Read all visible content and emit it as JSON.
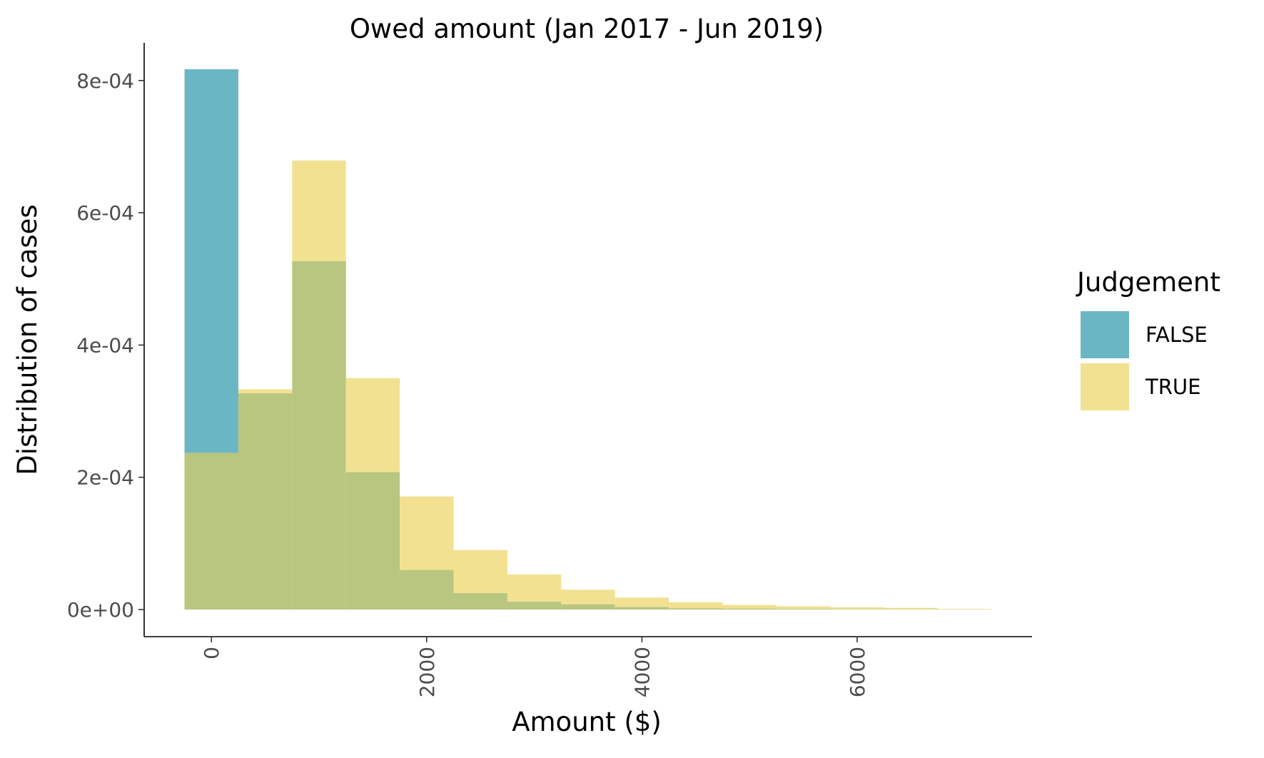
{
  "chart_data": {
    "type": "histogram",
    "title": "Owed amount (Jan 2017 - Jun 2019)",
    "xlabel": "Amount ($)",
    "ylabel": "Distribution of cases",
    "xlim": [
      -625,
      7625
    ],
    "ylim": [
      -4.1e-05,
      0.000857
    ],
    "x_ticks": [
      0,
      2000,
      4000,
      6000
    ],
    "x_tick_labels": [
      "0",
      "2000",
      "4000",
      "6000"
    ],
    "x_tick_label_rotation": -90,
    "y_ticks": [
      0,
      0.0002,
      0.0004,
      0.0006,
      0.0008
    ],
    "y_tick_labels": [
      "0e+00",
      "2e-04",
      "4e-04",
      "6e-04",
      "8e-04"
    ],
    "bin_edges": [
      -250,
      250,
      750,
      1250,
      1750,
      2250,
      2750,
      3250,
      3750,
      4250,
      4750,
      5250,
      5750,
      6250,
      6750,
      7250
    ],
    "overlap_color": "#b8c67f",
    "grid": false,
    "legend": {
      "title": "Judgement",
      "position": "right"
    },
    "series": [
      {
        "name": "FALSE",
        "color": "#6ab6c4",
        "values": [
          0.000817,
          0.000327,
          0.000527,
          0.000208,
          6e-05,
          2.5e-05,
          1.2e-05,
          8e-06,
          4e-06,
          2e-06,
          1.5e-06,
          1e-06,
          8e-07,
          5e-07,
          3e-07
        ]
      },
      {
        "name": "TRUE",
        "color": "#f2e191",
        "values": [
          0.000237,
          0.000333,
          0.000679,
          0.00035,
          0.000171,
          9e-05,
          5.3e-05,
          3e-05,
          1.8e-05,
          1.1e-05,
          7e-06,
          5e-06,
          3.5e-06,
          2.5e-06,
          1e-06
        ]
      }
    ]
  }
}
